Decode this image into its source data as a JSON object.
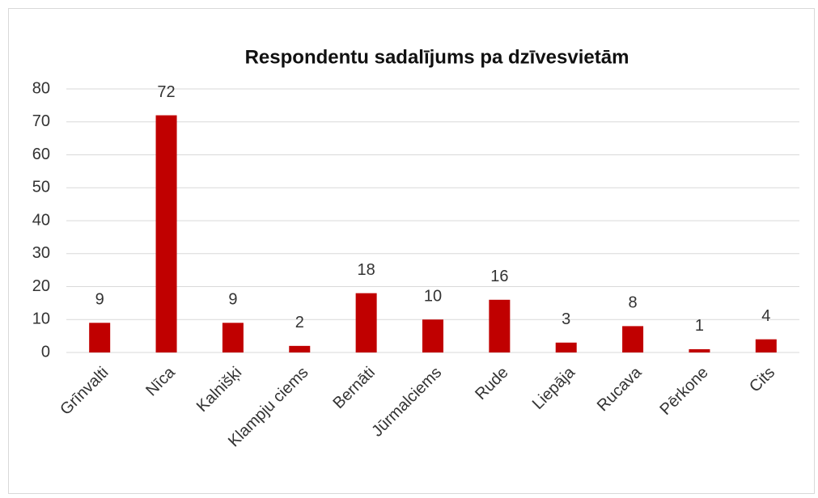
{
  "chart_data": {
    "type": "bar",
    "title": "Respondentu sadalījums pa dzīvesvietām",
    "categories": [
      "Grīnvalti",
      "Nīca",
      "Kalnišķi",
      "Klampju ciems",
      "Bernāti",
      "Jūrmalciems",
      "Rude",
      "Liepāja",
      "Rucava",
      "Pērkone",
      "Cits"
    ],
    "values": [
      9,
      72,
      9,
      2,
      18,
      10,
      16,
      3,
      8,
      1,
      4
    ],
    "color": "#c00000",
    "ylim": [
      0,
      80
    ],
    "yticks": [
      0,
      10,
      20,
      30,
      40,
      50,
      60,
      70,
      80
    ],
    "grid": true
  }
}
